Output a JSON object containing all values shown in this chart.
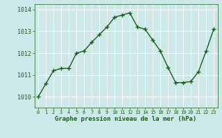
{
  "x": [
    0,
    1,
    2,
    3,
    4,
    5,
    6,
    7,
    8,
    9,
    10,
    11,
    12,
    13,
    14,
    15,
    16,
    17,
    18,
    19,
    20,
    21,
    22,
    23
  ],
  "y": [
    1010.0,
    1010.6,
    1011.2,
    1011.3,
    1011.3,
    1012.0,
    1012.1,
    1012.5,
    1012.85,
    1013.2,
    1013.65,
    1013.75,
    1013.85,
    1013.2,
    1013.1,
    1012.6,
    1012.1,
    1011.35,
    1010.65,
    1010.65,
    1010.7,
    1011.15,
    1012.1,
    1013.1
  ],
  "line_color": "#1a5c1a",
  "marker": "+",
  "marker_size": 4,
  "linewidth": 1.0,
  "bg_color": "#cce8e8",
  "grid_color": "#ffffff",
  "xlabel": "Graphe pression niveau de la mer (hPa)",
  "xlabel_color": "#1a5c1a",
  "tick_color": "#1a5c1a",
  "ylim": [
    1009.5,
    1014.25
  ],
  "xlim": [
    -0.5,
    23.5
  ],
  "yticks": [
    1010,
    1011,
    1012,
    1013,
    1014
  ],
  "xticks": [
    0,
    1,
    2,
    3,
    4,
    5,
    6,
    7,
    8,
    9,
    10,
    11,
    12,
    13,
    14,
    15,
    16,
    17,
    18,
    19,
    20,
    21,
    22,
    23
  ]
}
